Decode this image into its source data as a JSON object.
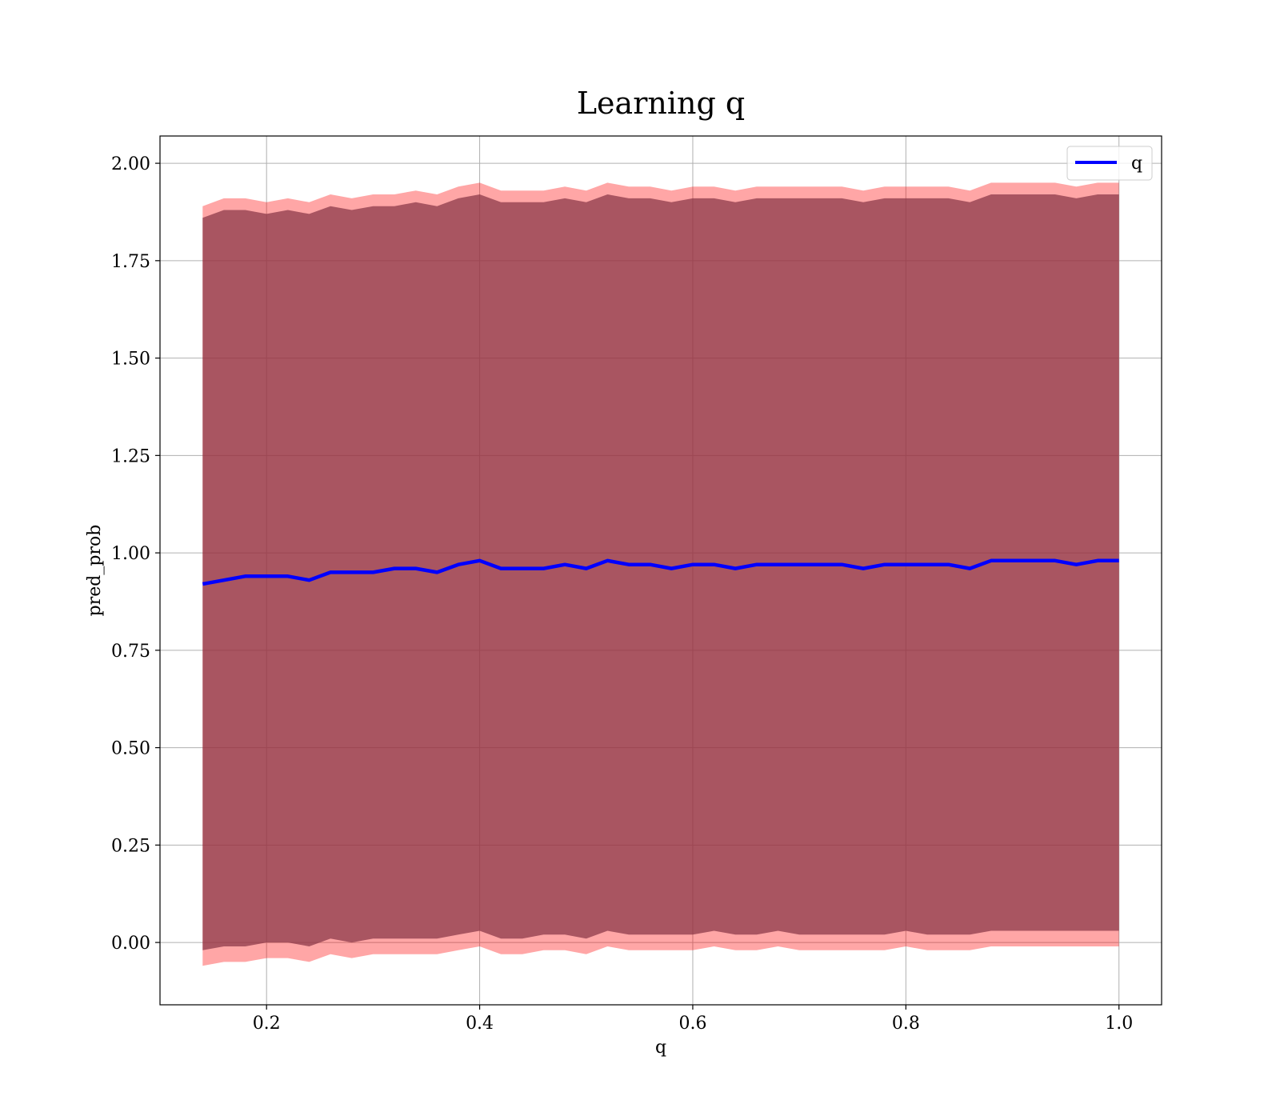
{
  "chart_data": {
    "type": "line",
    "title": "Learning q",
    "xlabel": "q",
    "ylabel": "pred_prob",
    "xlim": [
      0.1,
      1.04
    ],
    "ylim": [
      -0.16,
      2.07
    ],
    "x_ticks": [
      0.2,
      0.4,
      0.6,
      0.8,
      1.0
    ],
    "x_tick_labels": [
      "0.2",
      "0.4",
      "0.6",
      "0.8",
      "1.0"
    ],
    "y_ticks": [
      0.0,
      0.25,
      0.5,
      0.75,
      1.0,
      1.25,
      1.5,
      1.75,
      2.0
    ],
    "y_tick_labels": [
      "0.00",
      "0.25",
      "0.50",
      "0.75",
      "1.00",
      "1.25",
      "1.50",
      "1.75",
      "2.00"
    ],
    "grid": true,
    "legend_position": "top-right",
    "series": [
      {
        "name": "q",
        "color": "#0000ff",
        "x": [
          0.14,
          0.16,
          0.18,
          0.2,
          0.22,
          0.24,
          0.26,
          0.28,
          0.3,
          0.32,
          0.34,
          0.36,
          0.38,
          0.4,
          0.42,
          0.44,
          0.46,
          0.48,
          0.5,
          0.52,
          0.54,
          0.56,
          0.58,
          0.6,
          0.62,
          0.64,
          0.66,
          0.68,
          0.7,
          0.72,
          0.74,
          0.76,
          0.78,
          0.8,
          0.82,
          0.84,
          0.86,
          0.88,
          0.9,
          0.92,
          0.94,
          0.96,
          0.98,
          1.0
        ],
        "y": [
          0.92,
          0.93,
          0.94,
          0.94,
          0.94,
          0.93,
          0.95,
          0.95,
          0.95,
          0.96,
          0.96,
          0.95,
          0.97,
          0.98,
          0.96,
          0.96,
          0.96,
          0.97,
          0.96,
          0.98,
          0.97,
          0.97,
          0.96,
          0.97,
          0.97,
          0.96,
          0.97,
          0.97,
          0.97,
          0.97,
          0.97,
          0.96,
          0.97,
          0.97,
          0.97,
          0.97,
          0.96,
          0.98,
          0.98,
          0.98,
          0.98,
          0.97,
          0.98,
          0.98
        ]
      }
    ],
    "bands": [
      {
        "color": "#ff0000",
        "opacity": 0.35,
        "lower": [
          -0.06,
          -0.05,
          -0.05,
          -0.04,
          -0.04,
          -0.05,
          -0.03,
          -0.04,
          -0.03,
          -0.03,
          -0.03,
          -0.03,
          -0.02,
          -0.01,
          -0.03,
          -0.03,
          -0.02,
          -0.02,
          -0.03,
          -0.01,
          -0.02,
          -0.02,
          -0.02,
          -0.02,
          -0.01,
          -0.02,
          -0.02,
          -0.01,
          -0.02,
          -0.02,
          -0.02,
          -0.02,
          -0.02,
          -0.01,
          -0.02,
          -0.02,
          -0.02,
          -0.01,
          -0.01,
          -0.01,
          -0.01,
          -0.01,
          -0.01,
          -0.01
        ],
        "upper": [
          1.89,
          1.91,
          1.91,
          1.9,
          1.91,
          1.9,
          1.92,
          1.91,
          1.92,
          1.92,
          1.93,
          1.92,
          1.94,
          1.95,
          1.93,
          1.93,
          1.93,
          1.94,
          1.93,
          1.95,
          1.94,
          1.94,
          1.93,
          1.94,
          1.94,
          1.93,
          1.94,
          1.94,
          1.94,
          1.94,
          1.94,
          1.93,
          1.94,
          1.94,
          1.94,
          1.94,
          1.93,
          1.95,
          1.95,
          1.95,
          1.95,
          1.94,
          1.95,
          1.95
        ]
      },
      {
        "color": "#8c3a4a",
        "opacity": 0.75,
        "lower": [
          -0.02,
          -0.01,
          -0.01,
          0.0,
          0.0,
          -0.01,
          0.01,
          0.0,
          0.01,
          0.01,
          0.01,
          0.01,
          0.02,
          0.03,
          0.01,
          0.01,
          0.02,
          0.02,
          0.01,
          0.03,
          0.02,
          0.02,
          0.02,
          0.02,
          0.03,
          0.02,
          0.02,
          0.03,
          0.02,
          0.02,
          0.02,
          0.02,
          0.02,
          0.03,
          0.02,
          0.02,
          0.02,
          0.03,
          0.03,
          0.03,
          0.03,
          0.03,
          0.03,
          0.03
        ],
        "upper": [
          1.86,
          1.88,
          1.88,
          1.87,
          1.88,
          1.87,
          1.89,
          1.88,
          1.89,
          1.89,
          1.9,
          1.89,
          1.91,
          1.92,
          1.9,
          1.9,
          1.9,
          1.91,
          1.9,
          1.92,
          1.91,
          1.91,
          1.9,
          1.91,
          1.91,
          1.9,
          1.91,
          1.91,
          1.91,
          1.91,
          1.91,
          1.9,
          1.91,
          1.91,
          1.91,
          1.91,
          1.9,
          1.92,
          1.92,
          1.92,
          1.92,
          1.91,
          1.92,
          1.92
        ]
      }
    ]
  }
}
